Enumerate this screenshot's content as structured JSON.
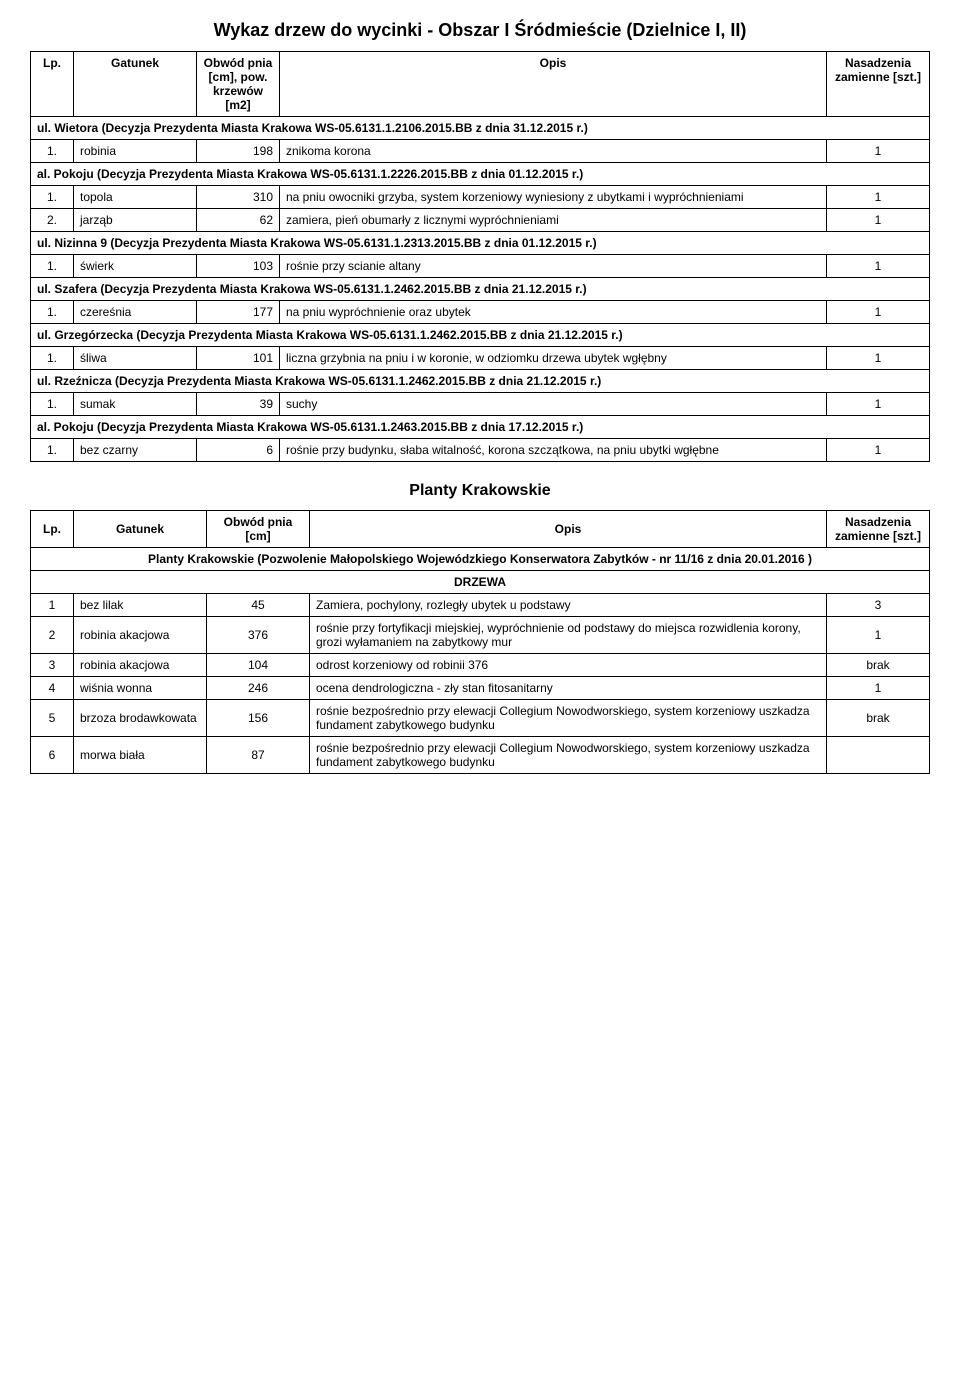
{
  "title": "Wykaz drzew do wycinki - Obszar I Śródmieście (Dzielnice I, II)",
  "header1": {
    "lp": "Lp.",
    "gatunek": "Gatunek",
    "obwod": "Obwód pnia [cm], pow. krzewów [m2]",
    "opis": "Opis",
    "nasadzenia": "Nasadzenia zamienne [szt.]"
  },
  "sections": [
    {
      "head": "ul. Wietora (Decyzja Prezydenta Miasta Krakowa WS-05.6131.1.2106.2015.BB z dnia 31.12.2015 r.)",
      "rows": [
        {
          "lp": "1.",
          "g": "robinia",
          "o": "198",
          "opis": "znikoma korona",
          "n": "1"
        }
      ]
    },
    {
      "head": "al. Pokoju (Decyzja Prezydenta Miasta Krakowa WS-05.6131.1.2226.2015.BB z dnia 01.12.2015 r.)",
      "rows": [
        {
          "lp": "1.",
          "g": "topola",
          "o": "310",
          "opis": "na pniu owocniki grzyba, system korzeniowy wyniesiony z ubytkami i wypróchnieniami",
          "n": "1"
        },
        {
          "lp": "2.",
          "g": "jarząb",
          "o": "62",
          "opis": "zamiera, pień obumarły z licznymi wypróchnieniami",
          "n": "1"
        }
      ]
    },
    {
      "head": "ul. Nizinna 9 (Decyzja Prezydenta Miasta Krakowa WS-05.6131.1.2313.2015.BB z dnia 01.12.2015 r.)",
      "rows": [
        {
          "lp": "1.",
          "g": "świerk",
          "o": "103",
          "opis": "rośnie przy scianie altany",
          "n": "1"
        }
      ]
    },
    {
      "head": "ul. Szafera (Decyzja Prezydenta Miasta Krakowa WS-05.6131.1.2462.2015.BB z dnia 21.12.2015 r.)",
      "rows": [
        {
          "lp": "1.",
          "g": "czereśnia",
          "o": "177",
          "opis": "na pniu wypróchnienie oraz ubytek",
          "n": "1"
        }
      ]
    },
    {
      "head": "ul. Grzegórzecka (Decyzja Prezydenta Miasta Krakowa WS-05.6131.1.2462.2015.BB z dnia 21.12.2015 r.)",
      "rows": [
        {
          "lp": "1.",
          "g": "śliwa",
          "o": "101",
          "opis": "liczna grzybnia na pniu i w koronie, w odziomku drzewa ubytek wgłębny",
          "n": "1"
        }
      ]
    },
    {
      "head": "ul. Rzeźnicza (Decyzja Prezydenta Miasta Krakowa WS-05.6131.1.2462.2015.BB z dnia 21.12.2015 r.)",
      "rows": [
        {
          "lp": "1.",
          "g": "sumak",
          "o": "39",
          "opis": "suchy",
          "n": "1"
        }
      ]
    },
    {
      "head": "al. Pokoju (Decyzja Prezydenta Miasta Krakowa WS-05.6131.1.2463.2015.BB z dnia 17.12.2015 r.)",
      "rows": [
        {
          "lp": "1.",
          "g": "bez czarny",
          "o": "6",
          "opis": "rośnie przy budynku, słaba witalność, korona szczątkowa, na pniu ubytki wgłębne",
          "n": "1"
        }
      ]
    }
  ],
  "planty": {
    "title": "Planty Krakowskie",
    "header": {
      "lp": "Lp.",
      "gatunek": "Gatunek",
      "obwod": "Obwód pnia [cm]",
      "opis": "Opis",
      "nasadzenia": "Nasadzenia zamienne [szt.]"
    },
    "permit": "Planty Krakowskie (Pozwolenie Małopolskiego Wojewódzkiego Konserwatora Zabytków - nr 11/16 z dnia 20.01.2016    )",
    "drzewa": "DRZEWA",
    "rows": [
      {
        "lp": "1",
        "g": "bez lilak",
        "o": "45",
        "opis": "Zamiera, pochylony, rozległy ubytek u podstawy",
        "n": "3"
      },
      {
        "lp": "2",
        "g": "robinia akacjowa",
        "o": "376",
        "opis": "rośnie przy fortyfikacji miejskiej, wypróchnienie od podstawy do miejsca rozwidlenia korony, grozi wyłamaniem na zabytkowy mur",
        "n": "1"
      },
      {
        "lp": "3",
        "g": "robinia akacjowa",
        "o": "104",
        "opis": "odrost korzeniowy od robinii 376",
        "n": "brak"
      },
      {
        "lp": "4",
        "g": "wiśnia wonna",
        "o": "246",
        "opis": "ocena dendrologiczna - zły stan fitosanitarny",
        "n": "1"
      },
      {
        "lp": "5",
        "g": "brzoza brodawkowata",
        "o": "156",
        "opis": "rośnie bezpośrednio przy elewacji Collegium Nowodworskiego, system korzeniowy uszkadza fundament zabytkowego budynku",
        "n": "brak"
      },
      {
        "lp": "6",
        "g": "morwa biała",
        "o": "87",
        "opis": "rośnie bezpośrednio przy elewacji Collegium Nowodworskiego, system korzeniowy uszkadza fundament zabytkowego budynku",
        "n": ""
      }
    ]
  }
}
